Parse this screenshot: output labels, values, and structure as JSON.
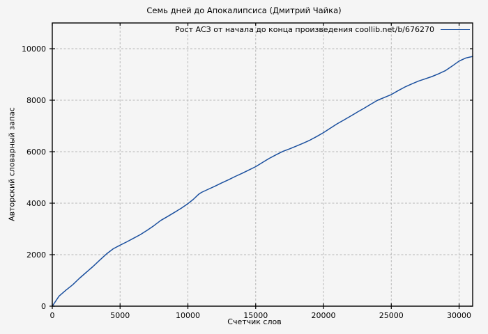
{
  "chart_data": {
    "type": "line",
    "title": "Семь дней до Апокалипсиса (Дмитрий Чайка)",
    "xlabel": "Счетчик слов",
    "ylabel": "Авторский словарный запас",
    "legend_position": "top-right-inside",
    "grid": true,
    "xlim": [
      0,
      31000
    ],
    "ylim": [
      0,
      11000
    ],
    "x_ticks": [
      0,
      5000,
      10000,
      15000,
      20000,
      25000,
      30000
    ],
    "y_ticks": [
      0,
      2000,
      4000,
      6000,
      8000,
      10000
    ],
    "colors": {
      "line": "#1a4f9e",
      "grid": "#b8b8b8",
      "border": "#000000",
      "background": "#f5f5f5"
    },
    "series": [
      {
        "name": "Рост АСЗ от начала до конца произведения coollib.net/b/676270",
        "x": [
          0,
          500,
          1000,
          1500,
          2000,
          2500,
          3000,
          3500,
          4000,
          4500,
          5000,
          5500,
          6000,
          6500,
          7000,
          7500,
          8000,
          8500,
          9000,
          9500,
          10000,
          10400,
          10800,
          11000,
          11500,
          12000,
          12500,
          13000,
          13500,
          14000,
          14500,
          15000,
          15500,
          16000,
          16500,
          17000,
          17500,
          18000,
          18500,
          19000,
          19500,
          20000,
          20500,
          21000,
          21500,
          22000,
          22500,
          23000,
          23500,
          24000,
          24500,
          25000,
          25500,
          26000,
          26500,
          27000,
          27500,
          28000,
          28500,
          29000,
          29500,
          30000,
          30500,
          31000
        ],
        "y": [
          0,
          390,
          620,
          830,
          1080,
          1310,
          1540,
          1790,
          2030,
          2230,
          2370,
          2500,
          2640,
          2780,
          2950,
          3130,
          3330,
          3480,
          3640,
          3800,
          3980,
          4150,
          4350,
          4420,
          4540,
          4660,
          4790,
          4910,
          5040,
          5160,
          5290,
          5420,
          5580,
          5740,
          5880,
          6010,
          6110,
          6220,
          6330,
          6450,
          6590,
          6740,
          6910,
          7080,
          7230,
          7380,
          7540,
          7690,
          7850,
          8000,
          8110,
          8220,
          8370,
          8510,
          8630,
          8740,
          8830,
          8920,
          9030,
          9150,
          9330,
          9520,
          9640,
          9700
        ]
      }
    ]
  }
}
